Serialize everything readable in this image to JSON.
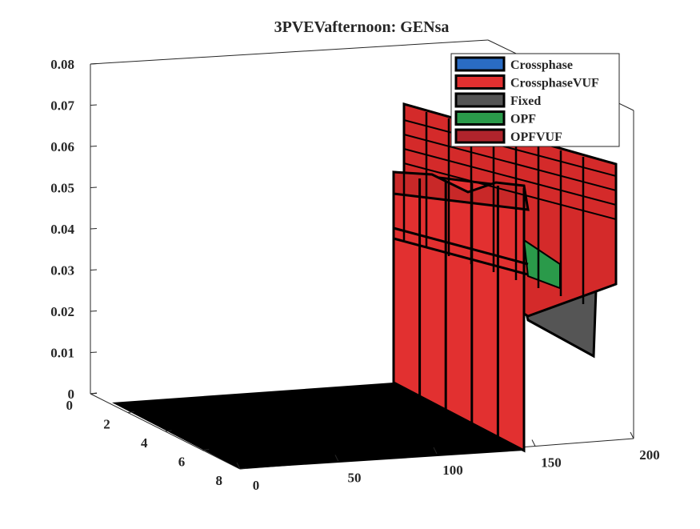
{
  "chart_data": {
    "type": "area",
    "title": "3PVEVafternoon: GENsa",
    "z_ticks": [
      "0",
      "0.01",
      "0.02",
      "0.03",
      "0.04",
      "0.05",
      "0.06",
      "0.07",
      "0.08"
    ],
    "x_ticks": [
      "0",
      "50",
      "100",
      "150",
      "200"
    ],
    "y_ticks": [
      "0",
      "2",
      "4",
      "6",
      "8"
    ],
    "xlim": [
      0,
      200
    ],
    "ylim": [
      0,
      8
    ],
    "zlim": [
      0,
      0.08
    ],
    "grid": false,
    "legend_position": "top-right",
    "series": [
      {
        "name": "Crossphase",
        "color": "#2a6cc4"
      },
      {
        "name": "CrossphaseVUF",
        "color": "#e23030"
      },
      {
        "name": "Fixed",
        "color": "#555555"
      },
      {
        "name": "OPF",
        "color": "#2a9a4a"
      },
      {
        "name": "OPFVUF",
        "color": "#b0242c"
      }
    ],
    "surface_profile": {
      "x_start": 128,
      "x_end": 200,
      "front_level": 0.053,
      "back_level": 0.071,
      "rear_low_level": 0.03
    }
  }
}
